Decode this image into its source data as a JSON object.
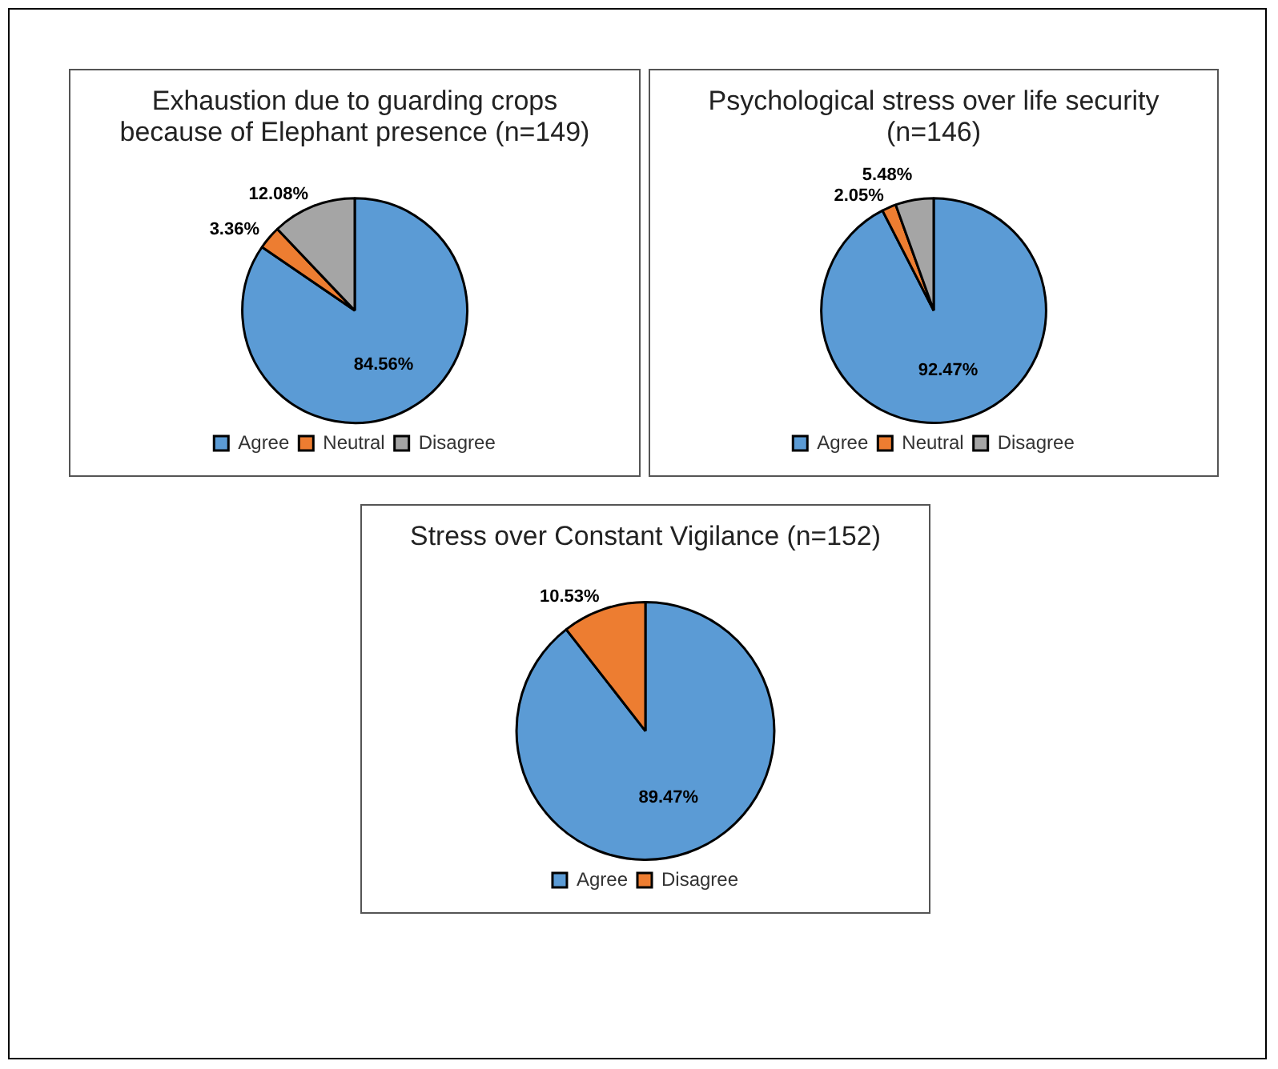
{
  "chart_data": [
    {
      "type": "pie",
      "title": "Exhaustion due to guarding crops because of Elephant presence (n=149)",
      "categories": [
        "Agree",
        "Neutral",
        "Disagree"
      ],
      "values": [
        84.56,
        3.36,
        12.08
      ],
      "colors": [
        "#5b9bd5",
        "#ed7d31",
        "#a5a5a5"
      ],
      "value_labels": [
        "84.56%",
        "3.36%",
        "12.08%"
      ],
      "legend": "bottom"
    },
    {
      "type": "pie",
      "title": "Psychological stress over life security (n=146)",
      "categories": [
        "Agree",
        "Neutral",
        "Disagree"
      ],
      "values": [
        92.47,
        2.05,
        5.48
      ],
      "colors": [
        "#5b9bd5",
        "#ed7d31",
        "#a5a5a5"
      ],
      "value_labels": [
        "92.47%",
        "2.05%",
        "5.48%"
      ],
      "legend": "bottom"
    },
    {
      "type": "pie",
      "title": "Stress over Constant Vigilance (n=152)",
      "categories": [
        "Agree",
        "Disagree"
      ],
      "values": [
        89.47,
        10.53
      ],
      "colors": [
        "#5b9bd5",
        "#ed7d31"
      ],
      "value_labels": [
        "89.47%",
        "10.53%"
      ],
      "legend": "bottom"
    }
  ]
}
